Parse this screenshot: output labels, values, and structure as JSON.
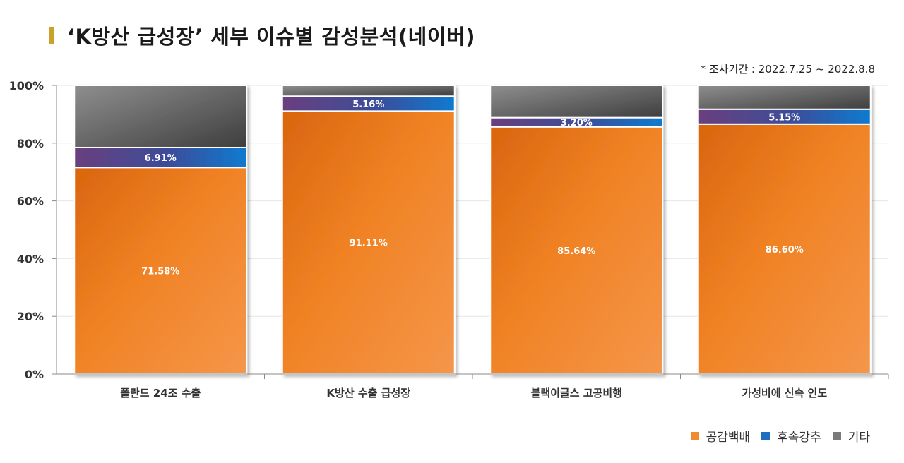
{
  "title": "‘K방산 급성장’ 세부 이슈별 감성분석(네이버)",
  "subtitle": "* 조사기간 : 2022.7.25 ~ 2022.8.8",
  "chart_data": {
    "type": "bar",
    "stacked": true,
    "title": "‘K방산 급성장’ 세부 이슈별 감성분석(네이버)",
    "xlabel": "",
    "ylabel": "",
    "ylim": [
      0,
      100
    ],
    "yticks": [
      "0%",
      "20%",
      "40%",
      "60%",
      "80%",
      "100%"
    ],
    "categories": [
      "폴란드 24조 수출",
      "K방산 수출 급성장",
      "블랙이글스 고공비행",
      "가성비에 신속 인도"
    ],
    "series": [
      {
        "name": "공감백배",
        "values": [
          71.58,
          91.11,
          85.64,
          86.6
        ],
        "labels": [
          "71.58%",
          "91.11%",
          "85.64%",
          "86.60%"
        ],
        "color": "#F08A2C"
      },
      {
        "name": "후속강추",
        "values": [
          6.91,
          5.16,
          3.2,
          5.15
        ],
        "labels": [
          "6.91%",
          "5.16%",
          "3.20%",
          "5.15%"
        ],
        "color": "#1F6FC0"
      },
      {
        "name": "기타",
        "values": [
          21.51,
          3.73,
          11.16,
          8.25
        ],
        "color": "#7A7A7A"
      }
    ],
    "grid": true,
    "legend_position": "bottom-right"
  }
}
